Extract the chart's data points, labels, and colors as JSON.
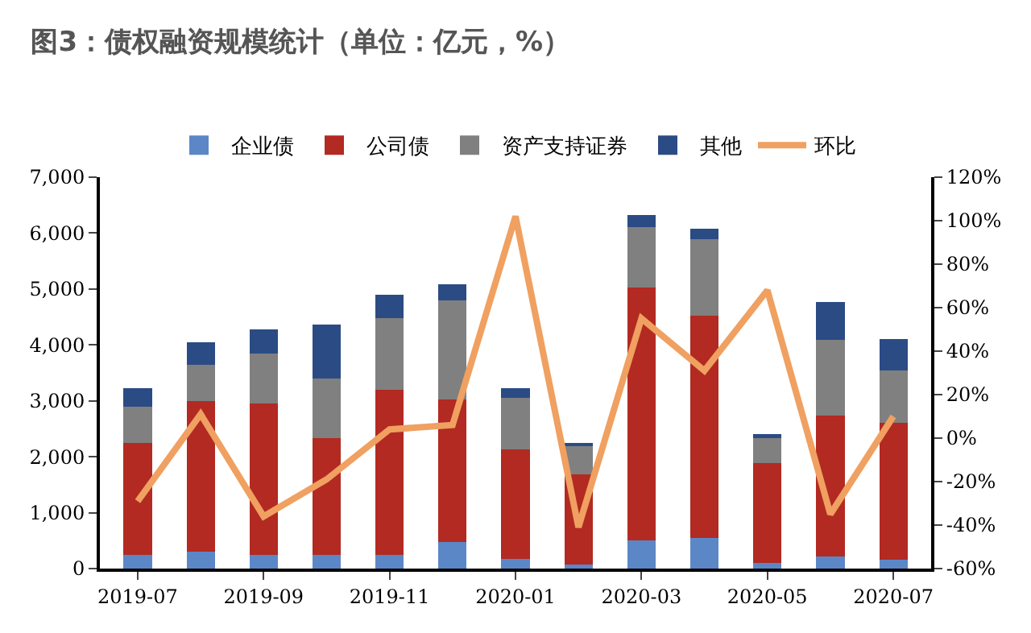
{
  "chart_data": {
    "type": "bar",
    "title": "图3：债权融资规模统计（单位：亿元，%）",
    "stacked": true,
    "legend": "top",
    "grid": false,
    "categories": [
      "2019-07",
      null,
      "2019-09",
      null,
      "2019-11",
      null,
      "2020-01",
      null,
      "2020-03",
      null,
      "2020-05",
      null,
      "2020-07"
    ],
    "series": [
      {
        "name": "企业债",
        "color": "#5b87c7",
        "values": [
          250,
          300,
          250,
          250,
          250,
          480,
          170,
          70,
          510,
          550,
          100,
          220,
          160
        ]
      },
      {
        "name": "公司债",
        "color": "#b22a22",
        "values": [
          2000,
          2700,
          2700,
          2080,
          2950,
          2550,
          1960,
          1620,
          4520,
          3970,
          1780,
          2510,
          2440
        ]
      },
      {
        "name": "资产支持证券",
        "color": "#808080",
        "values": [
          650,
          650,
          900,
          1070,
          1280,
          1770,
          920,
          500,
          1070,
          1370,
          470,
          1360,
          940
        ]
      },
      {
        "name": "其他",
        "color": "#2b4b85",
        "values": [
          330,
          400,
          430,
          970,
          420,
          280,
          180,
          40,
          220,
          190,
          50,
          680,
          560
        ]
      },
      {
        "name": "环比",
        "type": "line",
        "axis": "y2",
        "color": "#f0a060",
        "values": [
          -29,
          11,
          -36,
          -19,
          4,
          6,
          102,
          -41,
          55,
          31,
          68,
          -35,
          10
        ]
      }
    ],
    "ylim": [
      0,
      7000
    ],
    "yticks": [
      0,
      {
        "value": 1000,
        "label": "1,000"
      },
      {
        "value": 2000,
        "label": "2,000"
      },
      {
        "value": 3000,
        "label": "3,000"
      },
      {
        "value": 4000,
        "label": "4,000"
      },
      {
        "value": 5000,
        "label": "5,000"
      },
      {
        "value": 6000,
        "label": "6,000"
      },
      {
        "value": 7000,
        "label": "7,000"
      }
    ],
    "y2lim": [
      -60,
      120
    ],
    "y2ticks": [
      {
        "value": -60,
        "label": "-60%"
      },
      {
        "value": -40,
        "label": "-40%"
      },
      {
        "value": -20,
        "label": "-20%"
      },
      {
        "value": 0,
        "label": "0%"
      },
      {
        "value": 20,
        "label": "20%"
      },
      {
        "value": 40,
        "label": "40%"
      },
      {
        "value": 60,
        "label": "60%"
      },
      {
        "value": 80,
        "label": "80%"
      },
      {
        "value": 100,
        "label": "100%"
      },
      {
        "value": 120,
        "label": "120%"
      }
    ]
  }
}
